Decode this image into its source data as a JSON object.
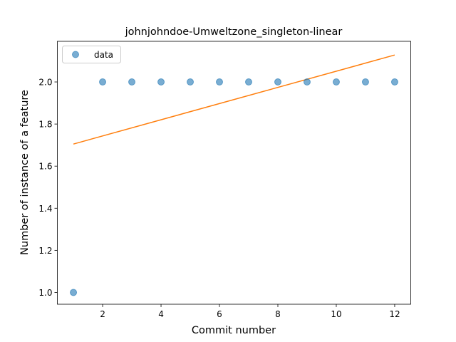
{
  "chart_data": {
    "type": "scatter",
    "title": "johnjohndoe-Umweltzone_singleton-linear",
    "xlabel": "Commit number",
    "ylabel": "Number of instance of a feature",
    "xlim": [
      0.45,
      12.55
    ],
    "ylim": [
      0.944,
      2.193
    ],
    "x_ticks": [
      2,
      4,
      6,
      8,
      10,
      12
    ],
    "y_ticks": [
      1.0,
      1.2,
      1.4,
      1.6,
      1.8,
      2.0
    ],
    "x_tick_labels": [
      "2",
      "4",
      "6",
      "8",
      "10",
      "12"
    ],
    "y_tick_labels": [
      "1.0",
      "1.2",
      "1.4",
      "1.6",
      "1.8",
      "2.0"
    ],
    "legend": {
      "placement": "top-left",
      "entries": [
        "data"
      ]
    },
    "grid": false,
    "series": [
      {
        "name": "data",
        "kind": "scatter",
        "color": "#1f77b4",
        "x": [
          1,
          2,
          3,
          4,
          5,
          6,
          7,
          8,
          9,
          10,
          11,
          12
        ],
        "y": [
          1,
          2,
          2,
          2,
          2,
          2,
          2,
          2,
          2,
          2,
          2,
          2
        ]
      },
      {
        "kind": "line",
        "color": "#ff7f0e",
        "x": [
          1,
          12
        ],
        "y": [
          1.705,
          2.128
        ]
      }
    ]
  }
}
